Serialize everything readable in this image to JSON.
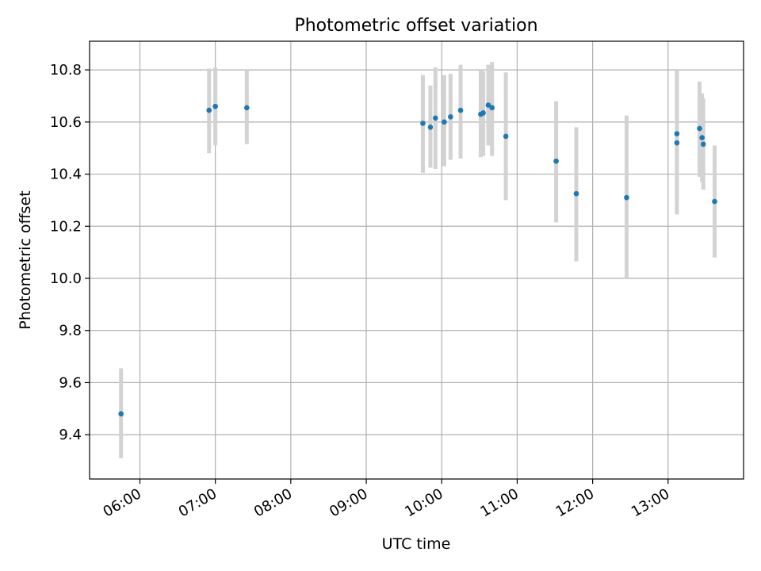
{
  "chart_data": {
    "type": "scatter",
    "title": "Photometric offset variation",
    "xlabel": "UTC time",
    "ylabel": "Photometric offset",
    "x_axis": {
      "type": "time",
      "range": [
        "05:20",
        "14:00"
      ],
      "ticks": [
        "06:00",
        "07:00",
        "08:00",
        "09:00",
        "10:00",
        "11:00",
        "12:00",
        "13:00"
      ]
    },
    "y_axis": {
      "range": [
        9.23,
        10.91
      ],
      "ticks": [
        "9.4",
        "9.6",
        "9.8",
        "10.0",
        "10.2",
        "10.4",
        "10.6",
        "10.8"
      ]
    },
    "grid": true,
    "colors": {
      "marker": "#1f77b4",
      "error_bar": "#d3d3d3",
      "grid": "#b0b0b0"
    },
    "points": [
      {
        "x": "05:45",
        "y": 9.48,
        "err_low": 9.31,
        "err_high": 9.655
      },
      {
        "x": "06:55",
        "y": 10.645,
        "err_low": 10.48,
        "err_high": 10.805
      },
      {
        "x": "07:00",
        "y": 10.66,
        "err_low": 10.51,
        "err_high": 10.81
      },
      {
        "x": "07:25",
        "y": 10.655,
        "err_low": 10.515,
        "err_high": 10.8
      },
      {
        "x": "09:45",
        "y": 10.595,
        "err_low": 10.405,
        "err_high": 10.78
      },
      {
        "x": "09:51",
        "y": 10.58,
        "err_low": 10.425,
        "err_high": 10.74
      },
      {
        "x": "09:55",
        "y": 10.615,
        "err_low": 10.42,
        "err_high": 10.81
      },
      {
        "x": "10:02",
        "y": 10.6,
        "err_low": 10.43,
        "err_high": 10.78
      },
      {
        "x": "10:07",
        "y": 10.62,
        "err_low": 10.455,
        "err_high": 10.785
      },
      {
        "x": "10:15",
        "y": 10.645,
        "err_low": 10.46,
        "err_high": 10.82
      },
      {
        "x": "10:31",
        "y": 10.63,
        "err_low": 10.465,
        "err_high": 10.8
      },
      {
        "x": "10:33",
        "y": 10.635,
        "err_low": 10.47,
        "err_high": 10.795
      },
      {
        "x": "10:37",
        "y": 10.665,
        "err_low": 10.51,
        "err_high": 10.82
      },
      {
        "x": "10:40",
        "y": 10.655,
        "err_low": 10.47,
        "err_high": 10.83
      },
      {
        "x": "10:51",
        "y": 10.545,
        "err_low": 10.3,
        "err_high": 10.79
      },
      {
        "x": "11:31",
        "y": 10.45,
        "err_low": 10.215,
        "err_high": 10.68
      },
      {
        "x": "11:47",
        "y": 10.325,
        "err_low": 10.065,
        "err_high": 10.58
      },
      {
        "x": "12:27",
        "y": 10.31,
        "err_low": 10.0,
        "err_high": 10.625
      },
      {
        "x": "13:07",
        "y": 10.52,
        "err_low": 10.245,
        "err_high": 10.795
      },
      {
        "x": "13:07",
        "y": 10.555,
        "err_low": 10.31,
        "err_high": 10.8
      },
      {
        "x": "13:25",
        "y": 10.575,
        "err_low": 10.39,
        "err_high": 10.755
      },
      {
        "x": "13:27",
        "y": 10.54,
        "err_low": 10.37,
        "err_high": 10.71
      },
      {
        "x": "13:28",
        "y": 10.515,
        "err_low": 10.34,
        "err_high": 10.69
      },
      {
        "x": "13:37",
        "y": 10.295,
        "err_low": 10.08,
        "err_high": 10.51
      }
    ]
  }
}
